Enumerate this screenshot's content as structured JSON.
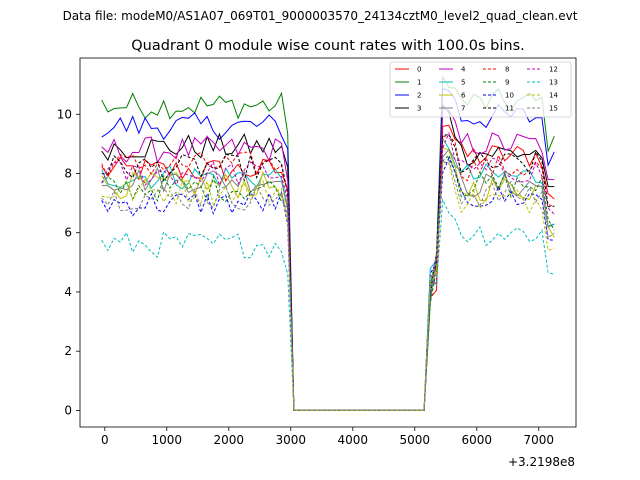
{
  "chart_data": {
    "type": "line",
    "suptitle": "Data file: modeM0/AS1A07_069T01_9000003570_24134cztM0_level2_quad_clean.evt",
    "title": "Quadrant 0 module wise count rates with 100.0s bins.",
    "xlabel": "",
    "ylabel": "",
    "x_offset_label": "+3.2198e8",
    "xlim": [
      -400,
      7600
    ],
    "ylim": [
      -0.56,
      11.9
    ],
    "xticks": [
      0,
      1000,
      2000,
      3000,
      4000,
      5000,
      6000,
      7000
    ],
    "yticks": [
      0,
      2,
      4,
      6,
      8,
      10
    ],
    "legend_position": "top-right",
    "gap": {
      "start": 3000,
      "drop": 3050,
      "end_low": 5200,
      "rise": 5300
    },
    "series": [
      {
        "name": "0",
        "color": "#ff0000",
        "dash": "solid",
        "pre": 8.1,
        "post": 8.6,
        "peak": 9.7
      },
      {
        "name": "1",
        "color": "#008000",
        "dash": "solid",
        "pre": 10.3,
        "post": 10.4,
        "peak": 11.2
      },
      {
        "name": "2",
        "color": "#0000ff",
        "dash": "solid",
        "pre": 9.6,
        "post": 9.9,
        "peak": 10.9
      },
      {
        "name": "3",
        "color": "#000000",
        "dash": "solid",
        "pre": 8.9,
        "post": 8.7,
        "peak": 10.2
      },
      {
        "name": "4",
        "color": "#bf00bf",
        "dash": "solid",
        "pre": 8.8,
        "post": 9.0,
        "peak": 10.0
      },
      {
        "name": "5",
        "color": "#00bfbf",
        "dash": "solid",
        "pre": 7.9,
        "post": 7.9,
        "peak": 9.0
      },
      {
        "name": "6",
        "color": "#bfbf00",
        "dash": "solid",
        "pre": 7.6,
        "post": 7.5,
        "peak": 8.6
      },
      {
        "name": "7",
        "color": "#808080",
        "dash": "solid",
        "pre": 7.8,
        "post": 7.6,
        "peak": 8.8
      },
      {
        "name": "8",
        "color": "#ff0000",
        "dash": "dashed",
        "pre": 8.3,
        "post": 8.2,
        "peak": 9.5
      },
      {
        "name": "9",
        "color": "#008000",
        "dash": "dashed",
        "pre": 7.5,
        "post": 7.6,
        "peak": 8.7
      },
      {
        "name": "10",
        "color": "#0000ff",
        "dash": "dashed",
        "pre": 7.0,
        "post": 7.2,
        "peak": 8.3
      },
      {
        "name": "11",
        "color": "#000000",
        "dash": "dashed",
        "pre": 8.2,
        "post": 8.3,
        "peak": 9.2
      },
      {
        "name": "12",
        "color": "#bf00bf",
        "dash": "dashed",
        "pre": 8.0,
        "post": 8.1,
        "peak": 9.1
      },
      {
        "name": "13",
        "color": "#00bfbf",
        "dash": "dashed",
        "pre": 5.6,
        "post": 6.0,
        "peak": 6.9
      },
      {
        "name": "14",
        "color": "#bfbf00",
        "dash": "dashed",
        "pre": 7.4,
        "post": 7.1,
        "peak": 8.2
      },
      {
        "name": "15",
        "color": "#808080",
        "dash": "dashed",
        "pre": 7.2,
        "post": 7.3,
        "peak": 8.4
      }
    ]
  }
}
